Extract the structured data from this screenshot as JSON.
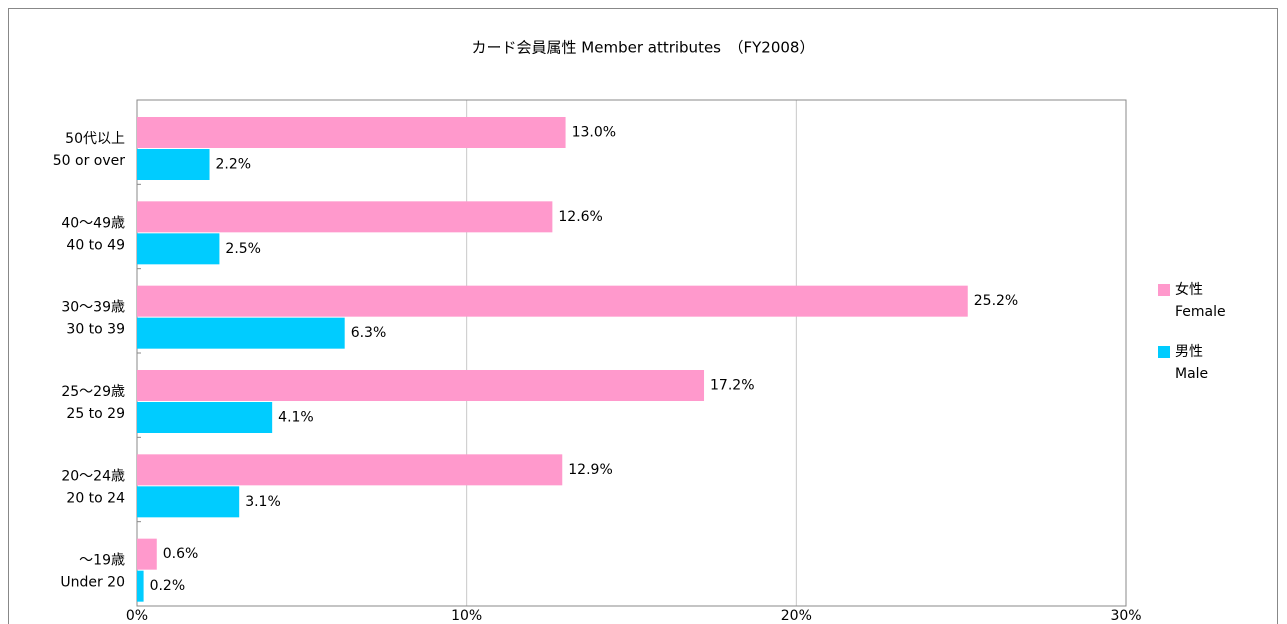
{
  "chart_data": {
    "type": "hbar",
    "title": "カード会員属性 Member attributes　（FY2008）",
    "categories": [
      [
        "50代以上",
        "50 or over"
      ],
      [
        "40～49歳",
        "40 to 49"
      ],
      [
        "30～39歳",
        "30 to 39"
      ],
      [
        "25～29歳",
        "25 to 29"
      ],
      [
        "20～24歳",
        "20 to 24"
      ],
      [
        "～19歳",
        "Under 20"
      ]
    ],
    "series": [
      {
        "name": [
          "女性",
          "Female"
        ],
        "color": "#ff99cc",
        "values": [
          13.0,
          12.6,
          25.2,
          17.2,
          12.9,
          0.6
        ],
        "value_labels": [
          "13.0%",
          "12.6%",
          "25.2%",
          "17.2%",
          "12.9%",
          "0.6%"
        ]
      },
      {
        "name": [
          "男性",
          "Male"
        ],
        "color": "#00ccff",
        "values": [
          2.2,
          2.5,
          6.3,
          4.1,
          3.1,
          0.2
        ],
        "value_labels": [
          "2.2%",
          "2.5%",
          "6.3%",
          "4.1%",
          "3.1%",
          "0.2%"
        ]
      }
    ],
    "xlim": [
      0,
      30
    ],
    "xticks": [
      {
        "value": 0,
        "label": "0%"
      },
      {
        "value": 10,
        "label": "10%"
      },
      {
        "value": 20,
        "label": "20%"
      },
      {
        "value": 30,
        "label": "30%"
      }
    ],
    "grid": true,
    "legend": "right"
  }
}
